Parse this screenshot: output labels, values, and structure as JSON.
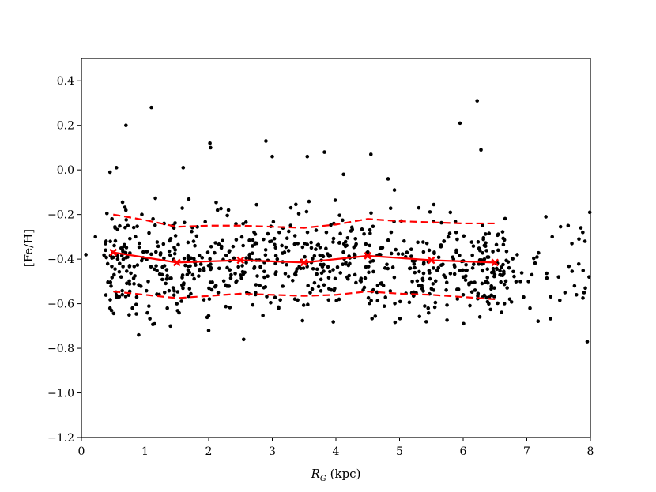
{
  "chart_data": {
    "type": "scatter",
    "title": "",
    "xlabel_main": "R",
    "xlabel_sub": "G",
    "xlabel_unit": " (kpc)",
    "ylabel": "[Fe/H]",
    "xlim": [
      0,
      8
    ],
    "ylim": [
      -1.2,
      0.5
    ],
    "xticks": [
      0,
      1,
      2,
      3,
      4,
      5,
      6,
      7,
      8
    ],
    "xtick_labels": [
      "0",
      "1",
      "2",
      "3",
      "4",
      "5",
      "6",
      "7",
      "8"
    ],
    "yticks": [
      -1.2,
      -1.0,
      -0.8,
      -0.6,
      -0.4,
      -0.2,
      0.0,
      0.2,
      0.4
    ],
    "ytick_labels": [
      "−1.2",
      "−1.0",
      "−0.8",
      "−0.6",
      "−0.4",
      "−0.2",
      "0.0",
      "0.2",
      "0.4"
    ],
    "grid": false,
    "legend": "none",
    "colors": {
      "points": "#000000",
      "trend": "#ff0000"
    },
    "series": [
      {
        "kind": "scatter",
        "x": [
          0.07,
          0.22,
          0.5,
          0.6,
          0.7,
          1.1,
          0.45,
          0.55,
          1.35,
          2.02,
          2.03,
          2.9,
          3.0,
          3.55,
          3.82,
          4.12,
          4.55,
          4.82,
          4.92,
          5.95,
          6.22,
          6.28,
          0.9,
          1.15,
          1.4,
          1.6,
          2.55,
          6.0,
          7.95,
          0.95,
          1.3,
          2.0,
          0.38,
          0.45,
          0.53,
          0.75,
          1.05,
          1.5,
          2.15,
          3.1,
          4.05,
          5.45,
          6.3,
          6.45,
          6.9,
          7.3,
          7.4,
          7.5,
          7.6,
          7.65,
          7.75,
          7.78,
          7.82,
          7.85,
          7.88,
          7.9,
          7.92,
          7.98,
          7.99,
          6.85,
          6.95,
          7.05,
          7.08,
          0.48,
          0.85,
          1.7,
          2.2,
          2.6,
          3.05,
          3.4,
          3.85,
          4.3,
          4.7,
          5.2,
          5.7,
          6.15,
          6.55
        ],
        "y": [
          -0.38,
          -0.3,
          -0.37,
          -0.42,
          0.2,
          0.28,
          -0.01,
          0.01,
          -0.62,
          0.12,
          0.1,
          0.13,
          0.06,
          0.06,
          0.08,
          -0.02,
          0.07,
          -0.04,
          -0.09,
          0.21,
          0.31,
          0.09,
          -0.74,
          -0.69,
          -0.7,
          0.01,
          -0.76,
          -0.56,
          -0.77,
          -0.2,
          -0.24,
          -0.72,
          -0.36,
          -0.62,
          -0.26,
          -0.65,
          -0.5,
          -0.6,
          -0.55,
          -0.62,
          -0.58,
          -0.62,
          -0.45,
          -0.46,
          -0.5,
          -0.21,
          -0.3,
          -0.48,
          -0.55,
          -0.25,
          -0.52,
          -0.56,
          -0.31,
          -0.26,
          -0.28,
          -0.55,
          -0.53,
          -0.48,
          -0.19,
          -0.38,
          -0.57,
          -0.62,
          -0.47,
          -0.22,
          -0.3,
          -0.46,
          -0.35,
          -0.55,
          -0.42,
          -0.33,
          -0.28,
          -0.47,
          -0.38,
          -0.5,
          -0.32,
          -0.44,
          -0.36
        ]
      },
      {
        "kind": "line",
        "style": "solid",
        "markers": true,
        "x": [
          0.5,
          1.5,
          2.5,
          3.5,
          4.5,
          5.5,
          6.5
        ],
        "y": [
          -0.37,
          -0.415,
          -0.405,
          -0.415,
          -0.385,
          -0.405,
          -0.415
        ]
      },
      {
        "kind": "line",
        "style": "dashed",
        "x": [
          0.5,
          1.0,
          1.5,
          2.0,
          2.5,
          3.0,
          3.5,
          4.0,
          4.5,
          5.0,
          5.5,
          6.0,
          6.5
        ],
        "y": [
          -0.2,
          -0.225,
          -0.255,
          -0.25,
          -0.25,
          -0.255,
          -0.26,
          -0.245,
          -0.22,
          -0.23,
          -0.235,
          -0.24,
          -0.24
        ]
      },
      {
        "kind": "line",
        "style": "dashed",
        "x": [
          0.5,
          1.0,
          1.5,
          2.0,
          2.5,
          3.0,
          3.5,
          4.0,
          4.5,
          5.0,
          5.5,
          6.0,
          6.5
        ],
        "y": [
          -0.545,
          -0.56,
          -0.575,
          -0.565,
          -0.555,
          -0.56,
          -0.565,
          -0.56,
          -0.545,
          -0.555,
          -0.56,
          -0.57,
          -0.58
        ]
      }
    ]
  }
}
